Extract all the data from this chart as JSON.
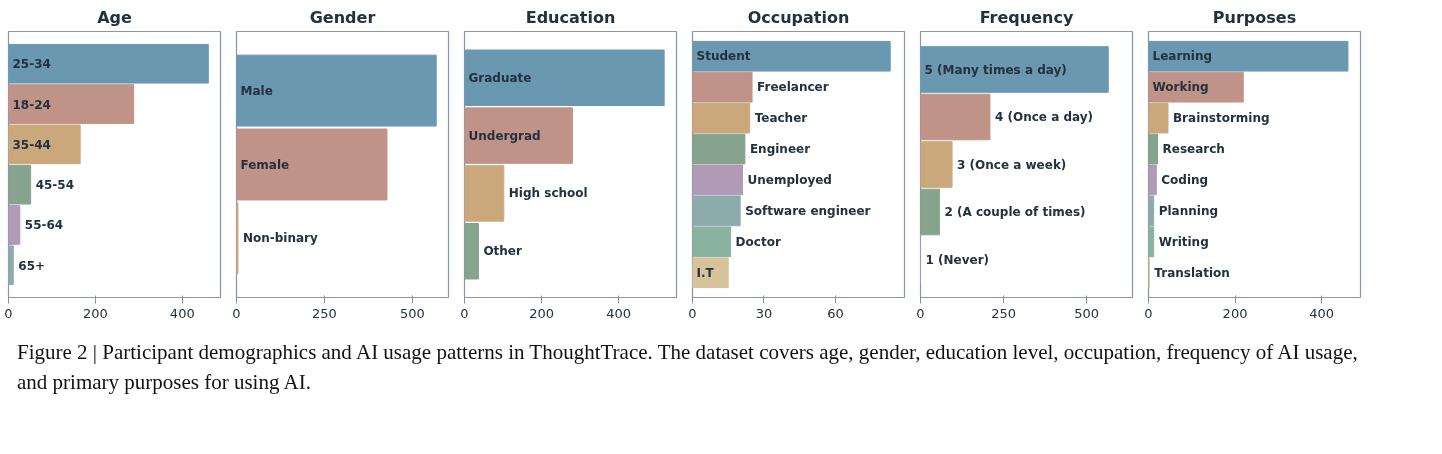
{
  "chart_data": [
    {
      "type": "bar",
      "orientation": "horizontal",
      "title": "Age",
      "categories": [
        "25-34",
        "18-24",
        "35-44",
        "45-54",
        "55-64",
        "65+"
      ],
      "values": [
        460,
        288,
        165,
        51,
        26,
        11
      ],
      "colors": [
        "#6a98b0",
        "#c09388",
        "#cba87c",
        "#86a38e",
        "#b09ab5",
        "#8eabab"
      ],
      "xlim": [
        0,
        488
      ],
      "xticks": [
        0,
        200,
        400
      ],
      "tick_labels": "x",
      "grid": false,
      "annotations": [
        "Figure 2 | Participant demographics and AI usage patterns in ThoughtTrace. The dataset covers age, gender, education level, occupation, frequency of AI usage, and primary purposes for using AI."
      ]
    },
    {
      "type": "bar",
      "orientation": "horizontal",
      "title": "Gender",
      "categories": [
        "Male",
        "Female",
        "Non-binary"
      ],
      "values": [
        568,
        428,
        4
      ],
      "colors": [
        "#6a98b0",
        "#c09388",
        "#cba87c"
      ],
      "xlim": [
        0,
        603
      ],
      "xticks": [
        0,
        250,
        500
      ],
      "tick_labels": "x",
      "grid": false
    },
    {
      "type": "bar",
      "orientation": "horizontal",
      "title": "Education",
      "categories": [
        "Graduate",
        "Undergrad",
        "High school",
        "Other"
      ],
      "values": [
        518,
        280,
        102,
        36
      ],
      "colors": [
        "#6a98b0",
        "#c09388",
        "#cba87c",
        "#86a38e"
      ],
      "xlim": [
        0,
        550
      ],
      "xticks": [
        0,
        200,
        400
      ],
      "tick_labels": "x",
      "grid": false
    },
    {
      "type": "bar",
      "orientation": "horizontal",
      "title": "Occupation",
      "categories": [
        "Student",
        "Freelancer",
        "Teacher",
        "Engineer",
        "Unemployed",
        "Software engineer",
        "Doctor",
        "I.T"
      ],
      "values": [
        83,
        25,
        24,
        22,
        21,
        20,
        16,
        15
      ],
      "colors": [
        "#6a98b0",
        "#c09388",
        "#cba87c",
        "#86a38e",
        "#b09ab5",
        "#8eabab",
        "#8ab2a0",
        "#d8c29c"
      ],
      "xlim": [
        0,
        89
      ],
      "xticks": [
        0,
        30,
        60
      ],
      "tick_labels": "x",
      "grid": false
    },
    {
      "type": "bar",
      "orientation": "horizontal",
      "title": "Frequency",
      "categories": [
        "5 (Many times a day)",
        "4 (Once a day)",
        "3 (Once a week)",
        "2 (A couple of times)",
        "1 (Never)"
      ],
      "values": [
        565,
        209,
        95,
        57,
        0
      ],
      "colors": [
        "#6a98b0",
        "#c09388",
        "#cba87c",
        "#86a38e",
        "#b09ab5"
      ],
      "xlim": [
        0,
        638
      ],
      "xticks": [
        0,
        250,
        500
      ],
      "tick_labels": "x",
      "grid": false
    },
    {
      "type": "bar",
      "orientation": "horizontal",
      "title": "Purposes",
      "categories": [
        "Learning",
        "Working",
        "Brainstorming",
        "Research",
        "Coding",
        "Planning",
        "Writing",
        "Translation"
      ],
      "values": [
        461,
        219,
        45,
        21,
        18,
        12,
        12,
        2
      ],
      "colors": [
        "#6a98b0",
        "#c09388",
        "#cba87c",
        "#86a38e",
        "#b09ab5",
        "#8eabab",
        "#8ab2a0",
        "#d8c29c"
      ],
      "xlim": [
        0,
        490
      ],
      "xticks": [
        0,
        200,
        400
      ],
      "tick_labels": "x",
      "grid": false
    }
  ]
}
